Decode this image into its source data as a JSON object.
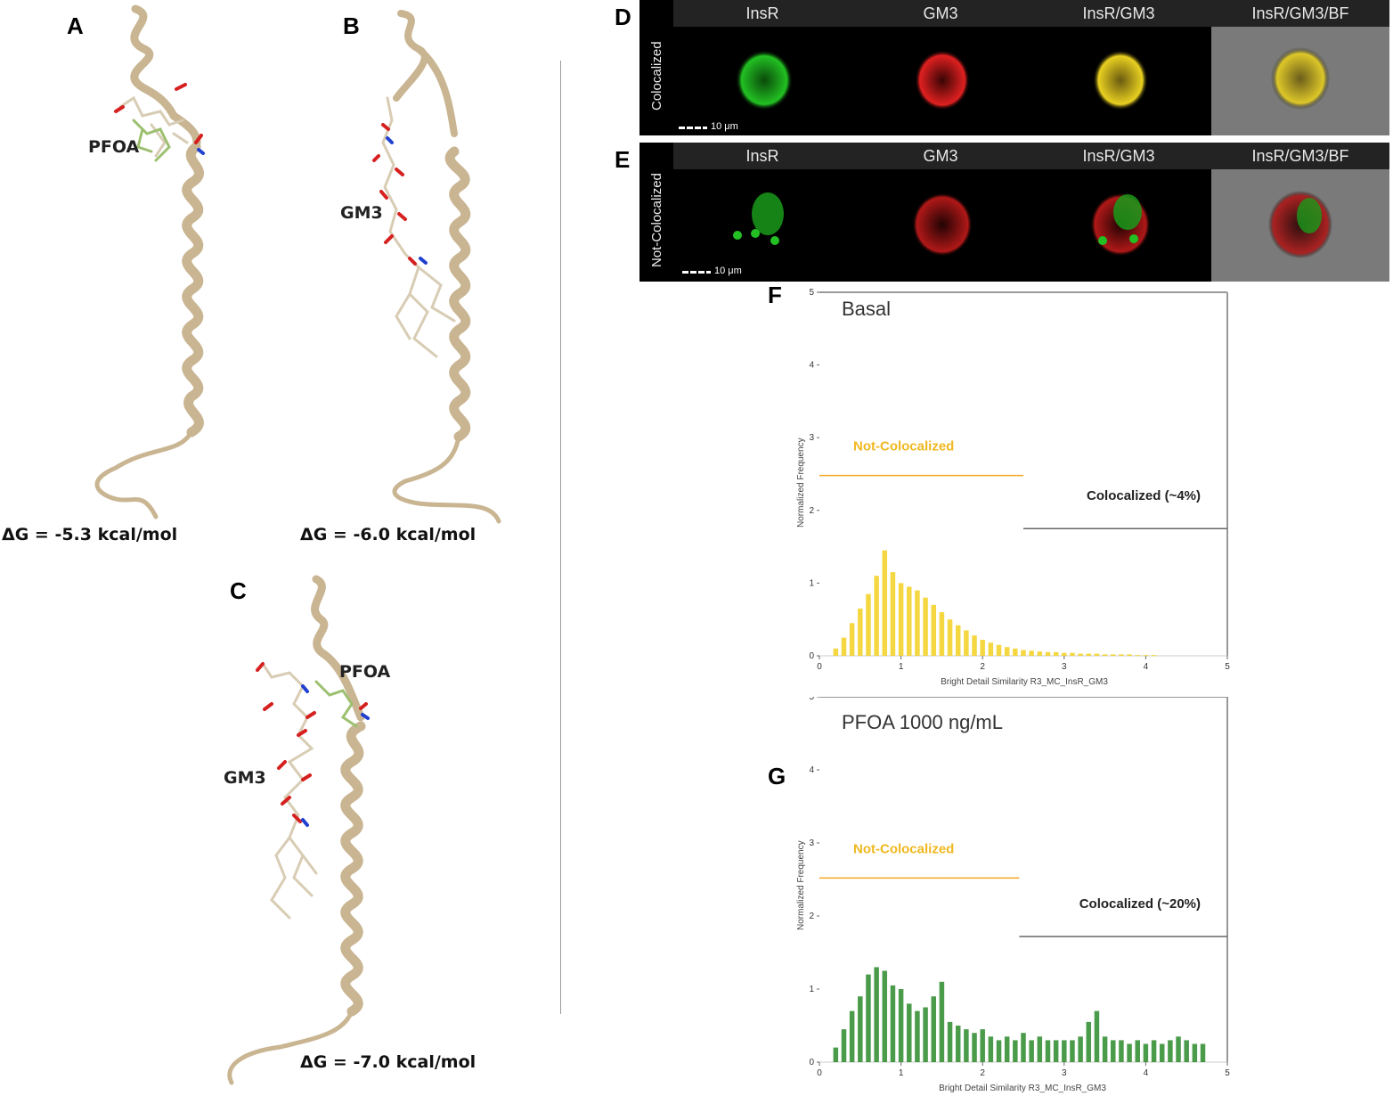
{
  "panels": {
    "A": {
      "label": "A",
      "ligand": "PFOA",
      "energy": "ΔG = -5.3 kcal/mol"
    },
    "B": {
      "label": "B",
      "ligand": "GM3",
      "energy": "ΔG = -6.0 kcal/mol"
    },
    "C": {
      "label": "C",
      "ligand1": "PFOA",
      "ligand2": "GM3",
      "energy": "ΔG = -7.0 kcal/mol"
    },
    "D": {
      "label": "D",
      "row_label": "Colocalized",
      "scale": "10 μm",
      "columns": [
        "InsR",
        "GM3",
        "InsR/GM3",
        "InsR/GM3/BF"
      ]
    },
    "E": {
      "label": "E",
      "row_label": "Not-Colocalized",
      "scale": "10 μm",
      "columns": [
        "InsR",
        "GM3",
        "InsR/GM3",
        "InsR/GM3/BF"
      ]
    },
    "F": {
      "label": "F"
    },
    "G": {
      "label": "G"
    }
  },
  "colors": {
    "helix": "#c9b592",
    "insr": "#22c022",
    "gm3": "#e02020",
    "pfoa": "#9cc070",
    "basal_series": "#f2d020",
    "pfoa_series": "#2a8a2a",
    "gate_not": "#f5a623",
    "gate_col": "#666666"
  },
  "chart_data": [
    {
      "type": "bar",
      "title": "Basal",
      "xlabel": "Bright Detail Similarity R3_MC_InsR_GM3",
      "ylabel": "Normalized Frequency",
      "xlim": [
        0,
        5
      ],
      "ylim": [
        0,
        5
      ],
      "xticks": [
        "0",
        "1",
        "2",
        "3",
        "4",
        "5"
      ],
      "yticks": [
        "0",
        "1",
        "2",
        "3",
        "4",
        "5"
      ],
      "gates": [
        {
          "name": "Not-Colocalized",
          "x": [
            0,
            2.5
          ],
          "y": 2.48
        },
        {
          "name": "Colocalized (~4%)",
          "x": [
            2.5,
            5
          ],
          "y": 1.75
        }
      ],
      "x": [
        0.2,
        0.3,
        0.4,
        0.5,
        0.6,
        0.7,
        0.8,
        0.9,
        1.0,
        1.1,
        1.2,
        1.3,
        1.4,
        1.5,
        1.6,
        1.7,
        1.8,
        1.9,
        2.0,
        2.1,
        2.2,
        2.3,
        2.4,
        2.5,
        2.6,
        2.7,
        2.8,
        2.9,
        3.0,
        3.1,
        3.2,
        3.3,
        3.4,
        3.5,
        3.6,
        3.7,
        3.8,
        3.9,
        4.0,
        4.1
      ],
      "values": [
        0.1,
        0.25,
        0.45,
        0.65,
        0.85,
        1.1,
        1.45,
        1.15,
        1.0,
        0.95,
        0.9,
        0.8,
        0.7,
        0.6,
        0.5,
        0.42,
        0.35,
        0.28,
        0.22,
        0.18,
        0.15,
        0.12,
        0.1,
        0.08,
        0.07,
        0.06,
        0.05,
        0.05,
        0.04,
        0.04,
        0.03,
        0.03,
        0.03,
        0.02,
        0.02,
        0.02,
        0.02,
        0.01,
        0.01,
        0.01
      ]
    },
    {
      "type": "bar",
      "title": "PFOA 1000 ng/mL",
      "xlabel": "Bright Detail Similarity R3_MC_InsR_GM3",
      "ylabel": "Normalized Frequency",
      "xlim": [
        0,
        5
      ],
      "ylim": [
        0,
        5
      ],
      "xticks": [
        "0",
        "1",
        "2",
        "3",
        "4",
        "5"
      ],
      "yticks": [
        "0",
        "1",
        "2",
        "3",
        "4",
        "5"
      ],
      "gates": [
        {
          "name": "Not-Colocalized",
          "x": [
            0,
            2.45
          ],
          "y": 2.52
        },
        {
          "name": "Colocalized (~20%)",
          "x": [
            2.45,
            5
          ],
          "y": 1.72
        }
      ],
      "x": [
        0.2,
        0.3,
        0.4,
        0.5,
        0.6,
        0.7,
        0.8,
        0.9,
        1.0,
        1.1,
        1.2,
        1.3,
        1.4,
        1.5,
        1.6,
        1.7,
        1.8,
        1.9,
        2.0,
        2.1,
        2.2,
        2.3,
        2.4,
        2.5,
        2.6,
        2.7,
        2.8,
        2.9,
        3.0,
        3.1,
        3.2,
        3.3,
        3.4,
        3.5,
        3.6,
        3.7,
        3.8,
        3.9,
        4.0,
        4.1,
        4.2,
        4.3,
        4.4,
        4.5,
        4.6,
        4.7
      ],
      "values": [
        0.2,
        0.45,
        0.7,
        0.9,
        1.2,
        1.3,
        1.25,
        1.05,
        1.0,
        0.8,
        0.7,
        0.75,
        0.9,
        1.1,
        0.55,
        0.5,
        0.45,
        0.4,
        0.45,
        0.35,
        0.3,
        0.35,
        0.3,
        0.4,
        0.3,
        0.35,
        0.3,
        0.3,
        0.3,
        0.3,
        0.35,
        0.55,
        0.7,
        0.35,
        0.3,
        0.3,
        0.25,
        0.3,
        0.25,
        0.3,
        0.25,
        0.3,
        0.35,
        0.3,
        0.25,
        0.25
      ]
    }
  ]
}
